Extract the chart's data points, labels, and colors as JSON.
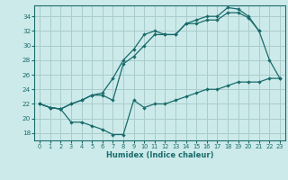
{
  "xlabel": "Humidex (Indice chaleur)",
  "bg_color": "#cceaea",
  "grid_color": "#aacccc",
  "line_color": "#1a6b6b",
  "xlim": [
    -0.5,
    23.5
  ],
  "ylim": [
    17.0,
    35.5
  ],
  "yticks": [
    18,
    20,
    22,
    24,
    26,
    28,
    30,
    32,
    34
  ],
  "xticks": [
    0,
    1,
    2,
    3,
    4,
    5,
    6,
    7,
    8,
    9,
    10,
    11,
    12,
    13,
    14,
    15,
    16,
    17,
    18,
    19,
    20,
    21,
    22,
    23
  ],
  "line1_x": [
    0,
    1,
    2,
    3,
    4,
    5,
    6,
    7,
    8,
    9,
    10,
    11,
    12,
    13,
    14,
    15,
    16,
    17,
    18,
    19,
    20,
    21,
    22,
    23
  ],
  "line1_y": [
    22,
    21.5,
    21.3,
    22,
    22.5,
    23.2,
    23.5,
    25.5,
    28,
    29.5,
    31.5,
    32,
    31.5,
    31.5,
    33,
    33.5,
    34,
    34,
    35.2,
    35,
    34,
    32,
    28,
    25.5
  ],
  "line2_x": [
    0,
    1,
    2,
    3,
    4,
    5,
    6,
    7,
    8,
    9,
    10,
    11,
    12,
    13,
    14,
    15,
    16,
    17,
    18,
    19,
    20,
    21
  ],
  "line2_y": [
    22,
    21.5,
    21.3,
    22,
    22.5,
    23.2,
    23.2,
    22.5,
    27.5,
    28.5,
    30,
    31.5,
    31.5,
    31.5,
    33,
    33,
    33.5,
    33.5,
    34.5,
    34.5,
    33.8,
    32
  ],
  "line3_x": [
    0,
    1,
    2,
    3,
    4,
    5,
    6,
    7,
    8,
    9,
    10,
    11,
    12,
    13,
    14,
    15,
    16,
    17,
    18,
    19,
    20,
    21,
    22,
    23
  ],
  "line3_y": [
    22,
    21.5,
    21.3,
    19.5,
    19.5,
    19,
    18.5,
    17.8,
    17.8,
    22.5,
    21.5,
    22,
    22,
    22.5,
    23,
    23.5,
    24,
    24,
    24.5,
    25,
    25,
    25,
    25.5,
    25.5
  ]
}
